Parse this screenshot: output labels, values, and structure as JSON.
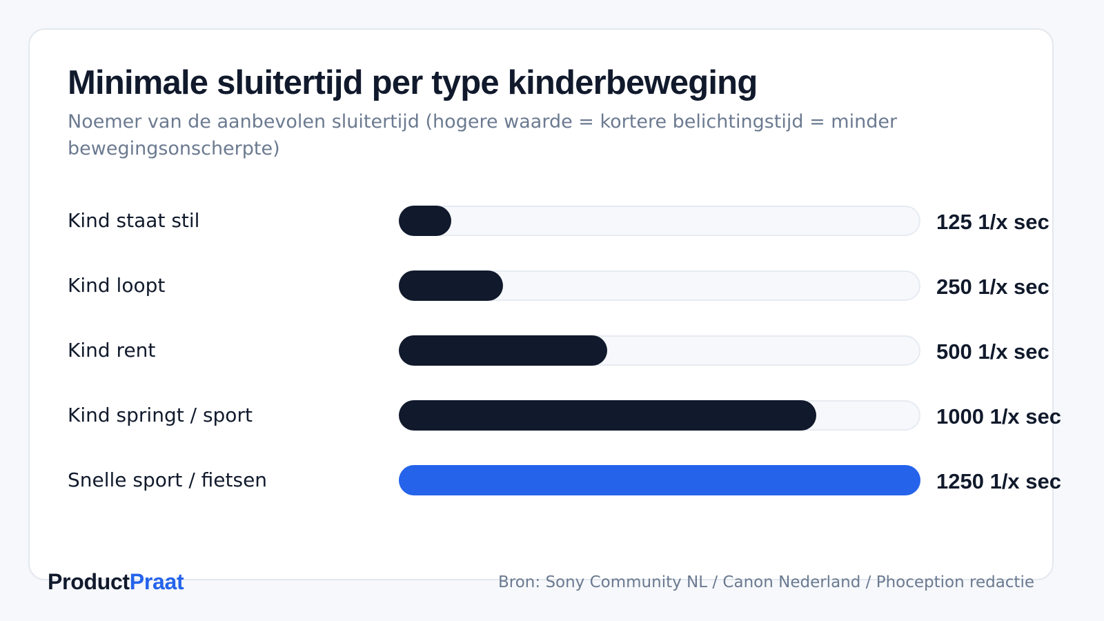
{
  "chart_data": {
    "type": "bar",
    "orientation": "horizontal",
    "title": "Minimale sluitertijd per type kinderbeweging",
    "subtitle": "Noemer van de aanbevolen sluitertijd (hogere waarde = kortere belichtingstijd = minder bewegingsonscherpte)",
    "categories": [
      "Kind staat stil",
      "Kind loopt",
      "Kind rent",
      "Kind springt / sport",
      "Snelle sport / fietsen"
    ],
    "values": [
      125,
      250,
      500,
      1000,
      1250
    ],
    "value_labels": [
      "125 1/x sec",
      "250 1/x sec",
      "500 1/x sec",
      "1000 1/x sec",
      "1250 1/x sec"
    ],
    "xlim": [
      0,
      1250
    ],
    "bar_colors": [
      "#111a2c",
      "#111a2c",
      "#111a2c",
      "#111a2c",
      "#2563eb"
    ],
    "track_color": "#f6f8fb"
  },
  "footer": {
    "brand_part1": "Product",
    "brand_part2": "Praat",
    "source": "Bron: Sony Community NL / Canon Nederland / Phoception redactie"
  },
  "colors": {
    "text_dark": "#111a2c",
    "text_muted": "#6b7a90",
    "accent": "#2563eb",
    "background": "#f6f8fb",
    "card": "#ffffff"
  }
}
